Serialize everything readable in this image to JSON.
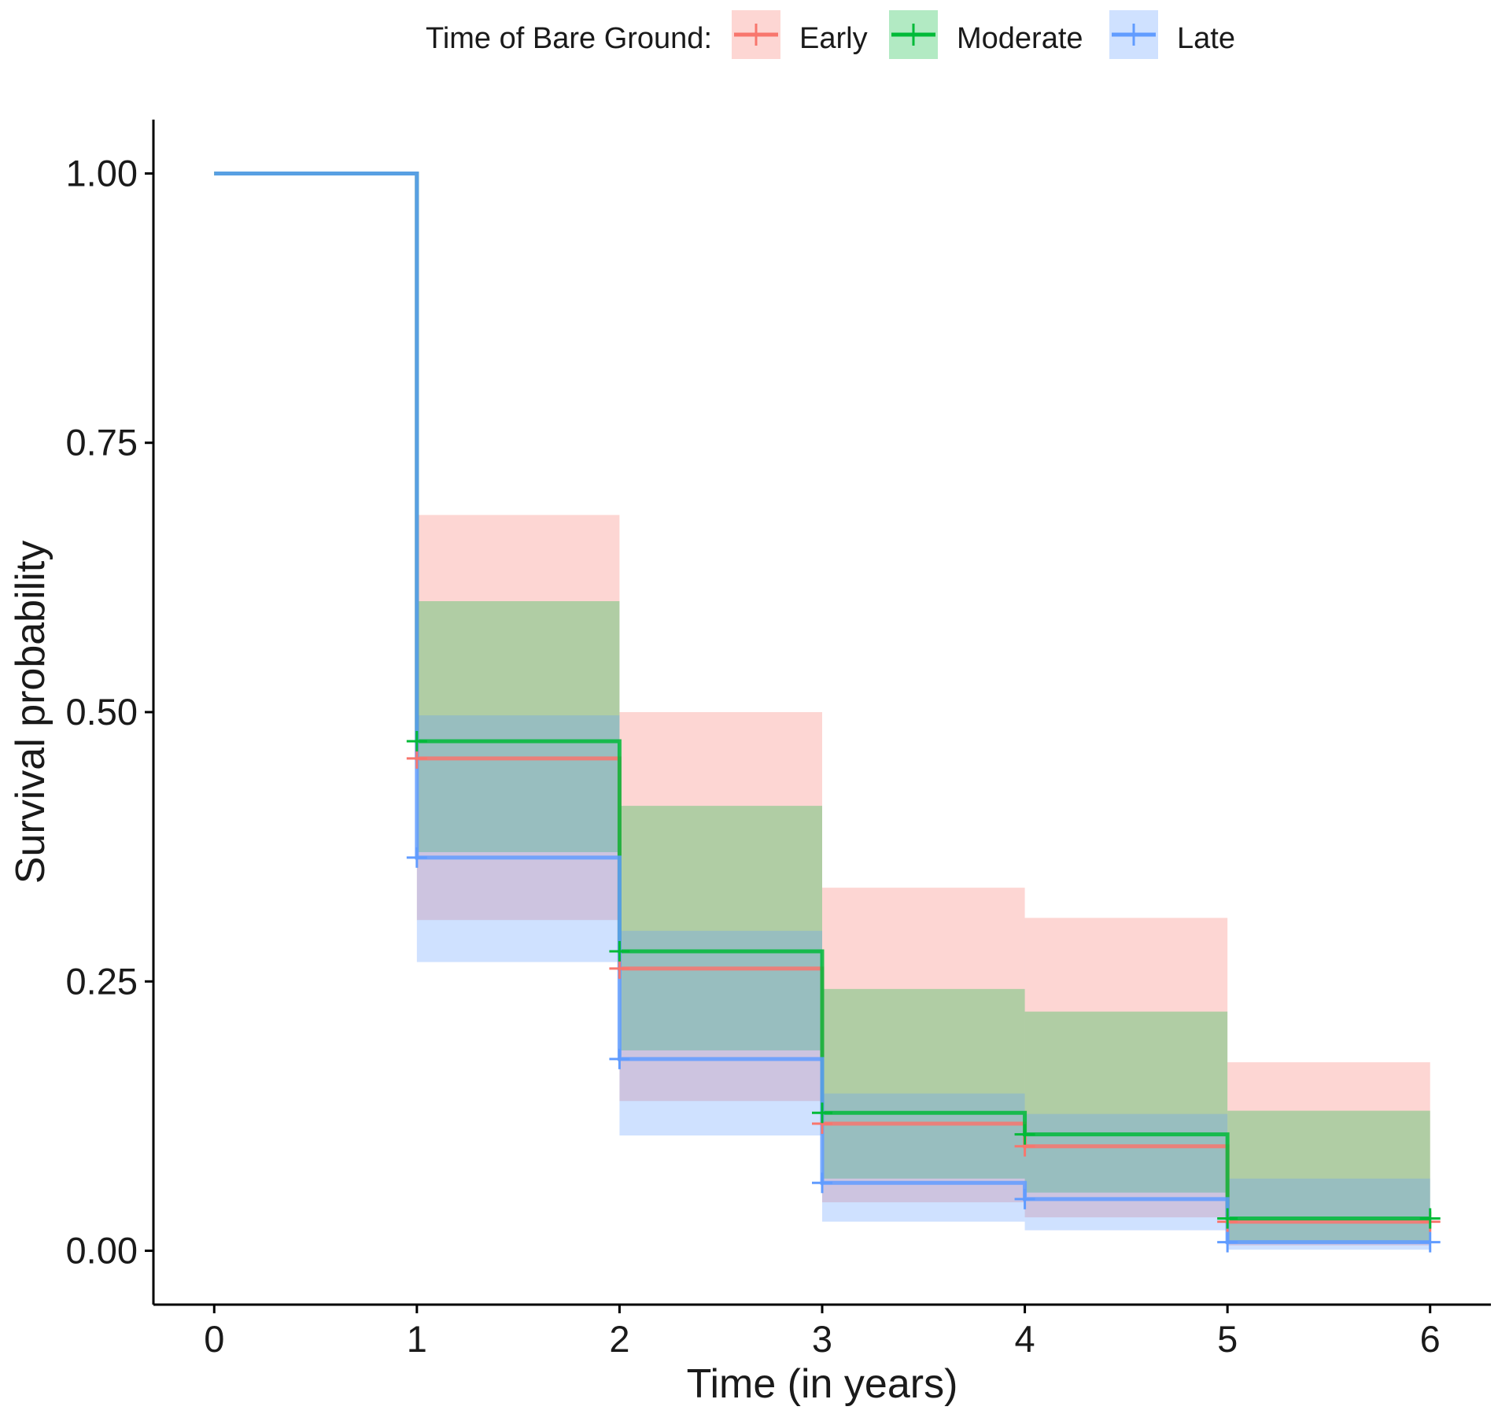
{
  "chart_data": {
    "type": "line",
    "subtype": "step",
    "xlabel": "Time (in years)",
    "ylabel": "Survival probability",
    "xlim": [
      -0.3,
      6.3
    ],
    "ylim": [
      -0.05,
      1.05
    ],
    "x_ticks": [
      0,
      1,
      2,
      3,
      4,
      5,
      6
    ],
    "y_ticks": [
      0,
      0.25,
      0.5,
      0.75,
      1
    ],
    "x_tick_labels": [
      "0",
      "1",
      "2",
      "3",
      "4",
      "5",
      "6"
    ],
    "y_tick_labels": [
      "0.00",
      "0.25",
      "0.50",
      "0.75",
      "1.00"
    ],
    "grid": false,
    "legend": {
      "position": "top",
      "title": "Time of Bare Ground:",
      "entries": [
        "Early",
        "Moderate",
        "Late"
      ]
    },
    "x": [
      0,
      1,
      2,
      3,
      4,
      5,
      6
    ],
    "series": [
      {
        "name": "Early",
        "color": "#F8766D",
        "values": [
          1.0,
          0.457,
          0.262,
          0.118,
          0.097,
          0.027,
          0.027
        ],
        "ci_upper": [
          1.0,
          0.683,
          0.5,
          0.337,
          0.309,
          0.175,
          0.175
        ],
        "ci_lower": [
          1.0,
          0.307,
          0.139,
          0.045,
          0.031,
          0.005,
          0.005
        ]
      },
      {
        "name": "Moderate",
        "color": "#00BA38",
        "values": [
          1.0,
          0.473,
          0.278,
          0.128,
          0.108,
          0.03,
          0.03
        ],
        "ci_upper": [
          1.0,
          0.603,
          0.413,
          0.243,
          0.222,
          0.13,
          0.13
        ],
        "ci_lower": [
          1.0,
          0.37,
          0.186,
          0.067,
          0.054,
          0.007,
          0.007
        ]
      },
      {
        "name": "Late",
        "color": "#619CFF",
        "values": [
          1.0,
          0.365,
          0.178,
          0.063,
          0.048,
          0.008,
          0.008
        ],
        "ci_upper": [
          1.0,
          0.497,
          0.297,
          0.146,
          0.127,
          0.067,
          0.067
        ],
        "ci_lower": [
          1.0,
          0.268,
          0.107,
          0.027,
          0.019,
          0.001,
          0.001
        ]
      }
    ]
  }
}
